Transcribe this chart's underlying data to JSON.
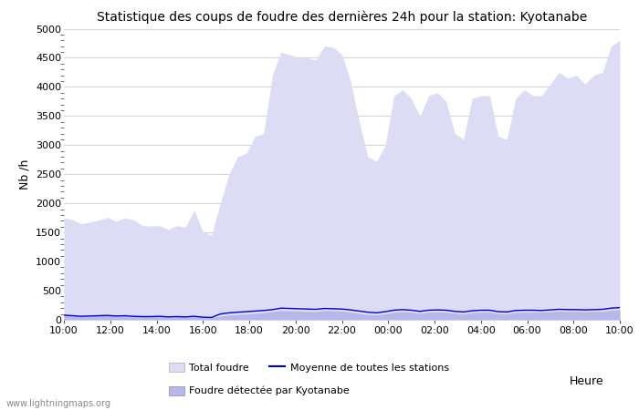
{
  "title": "Statistique des coups de foudre des dernières 24h pour la station: Kyotanabe",
  "xlabel": "Heure",
  "ylabel": "Nb /h",
  "watermark": "www.lightningmaps.org",
  "ylim": [
    0,
    5000
  ],
  "yticks": [
    0,
    500,
    1000,
    1500,
    2000,
    2500,
    3000,
    3500,
    4000,
    4500,
    5000
  ],
  "xtick_labels": [
    "10:00",
    "12:00",
    "14:00",
    "16:00",
    "18:00",
    "20:00",
    "22:00",
    "00:00",
    "02:00",
    "04:00",
    "06:00",
    "08:00",
    "10:00"
  ],
  "bg_color": "#ffffff",
  "fill_color_total": "#dcdcf5",
  "fill_color_kyotanabe": "#b8b8e8",
  "line_color_moyenne": "#0000cc",
  "legend_total": "Total foudre",
  "legend_moyenne": "Moyenne de toutes les stations",
  "legend_kyotanabe": "Foudre détectée par Kyotanabe",
  "total_foudre": [
    1750,
    1720,
    1650,
    1680,
    1710,
    1760,
    1690,
    1750,
    1720,
    1620,
    1610,
    1620,
    1550,
    1620,
    1590,
    1880,
    1520,
    1450,
    2000,
    2500,
    2800,
    2860,
    3150,
    3200,
    4200,
    4600,
    4550,
    4510,
    4500,
    4460,
    4700,
    4680,
    4560,
    4100,
    3400,
    2800,
    2720,
    3000,
    3850,
    3950,
    3800,
    3500,
    3850,
    3900,
    3750,
    3200,
    3100,
    3800,
    3850,
    3850,
    3150,
    3100,
    3800,
    3950,
    3850,
    3850,
    4050,
    4250,
    4150,
    4200,
    4050,
    4200,
    4250,
    4700,
    4800
  ],
  "kyotanabe": [
    80,
    70,
    60,
    65,
    70,
    75,
    65,
    70,
    60,
    55,
    55,
    60,
    50,
    55,
    50,
    60,
    45,
    40,
    60,
    80,
    90,
    100,
    110,
    120,
    140,
    160,
    155,
    150,
    145,
    140,
    160,
    155,
    150,
    130,
    110,
    90,
    85,
    100,
    130,
    140,
    130,
    110,
    130,
    135,
    130,
    110,
    100,
    125,
    130,
    130,
    105,
    100,
    125,
    130,
    130,
    130,
    140,
    150,
    145,
    145,
    140,
    145,
    145,
    165,
    175
  ],
  "moyenne": [
    80,
    70,
    60,
    65,
    70,
    75,
    65,
    70,
    60,
    55,
    55,
    60,
    50,
    55,
    50,
    60,
    45,
    40,
    100,
    120,
    130,
    140,
    150,
    160,
    175,
    200,
    195,
    190,
    185,
    180,
    195,
    190,
    185,
    170,
    150,
    130,
    120,
    140,
    165,
    175,
    165,
    145,
    165,
    170,
    165,
    145,
    135,
    155,
    165,
    165,
    140,
    135,
    160,
    165,
    165,
    160,
    170,
    180,
    175,
    175,
    170,
    175,
    180,
    200,
    210
  ]
}
